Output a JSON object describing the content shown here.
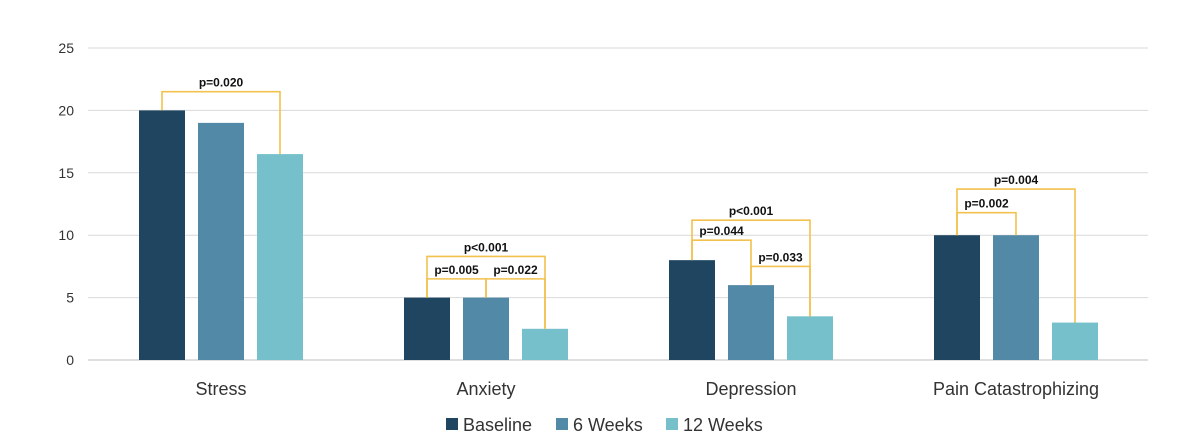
{
  "chart_data": {
    "type": "bar",
    "title": "",
    "xlabel": "",
    "ylabel": "",
    "ylim": [
      0,
      25
    ],
    "yticks": [
      0,
      5,
      10,
      15,
      20,
      25
    ],
    "grid": true,
    "legend_position": "bottom",
    "categories": [
      "Stress",
      "Anxiety",
      "Depression",
      "Pain Catastrophizing"
    ],
    "series": [
      {
        "name": "Baseline",
        "color": "#1f4560",
        "values": [
          20,
          5,
          8,
          10
        ]
      },
      {
        "name": "6 Weeks",
        "color": "#5289a6",
        "values": [
          19,
          5,
          6,
          10
        ]
      },
      {
        "name": "12 Weeks",
        "color": "#76c0cc",
        "values": [
          16.5,
          2.5,
          3.5,
          3
        ]
      }
    ],
    "bracket_color": "#f2c14e",
    "significance": [
      {
        "category": 0,
        "from": 0,
        "to": 2,
        "level": 21.5,
        "label": "p=0.020"
      },
      {
        "category": 1,
        "from": 0,
        "to": 1,
        "level": 6.5,
        "label": "p=0.005"
      },
      {
        "category": 1,
        "from": 1,
        "to": 2,
        "level": 6.5,
        "label": "p=0.022"
      },
      {
        "category": 1,
        "from": 0,
        "to": 2,
        "level": 8.3,
        "label": "p<0.001"
      },
      {
        "category": 2,
        "from": 0,
        "to": 1,
        "level": 9.6,
        "label": "p=0.044"
      },
      {
        "category": 2,
        "from": 1,
        "to": 2,
        "level": 7.5,
        "label": "p=0.033"
      },
      {
        "category": 2,
        "from": 0,
        "to": 2,
        "level": 11.2,
        "label": "p<0.001"
      },
      {
        "category": 3,
        "from": 0,
        "to": 1,
        "level": 11.8,
        "label": "p=0.002"
      },
      {
        "category": 3,
        "from": 0,
        "to": 2,
        "level": 13.7,
        "label": "p=0.004"
      }
    ]
  }
}
